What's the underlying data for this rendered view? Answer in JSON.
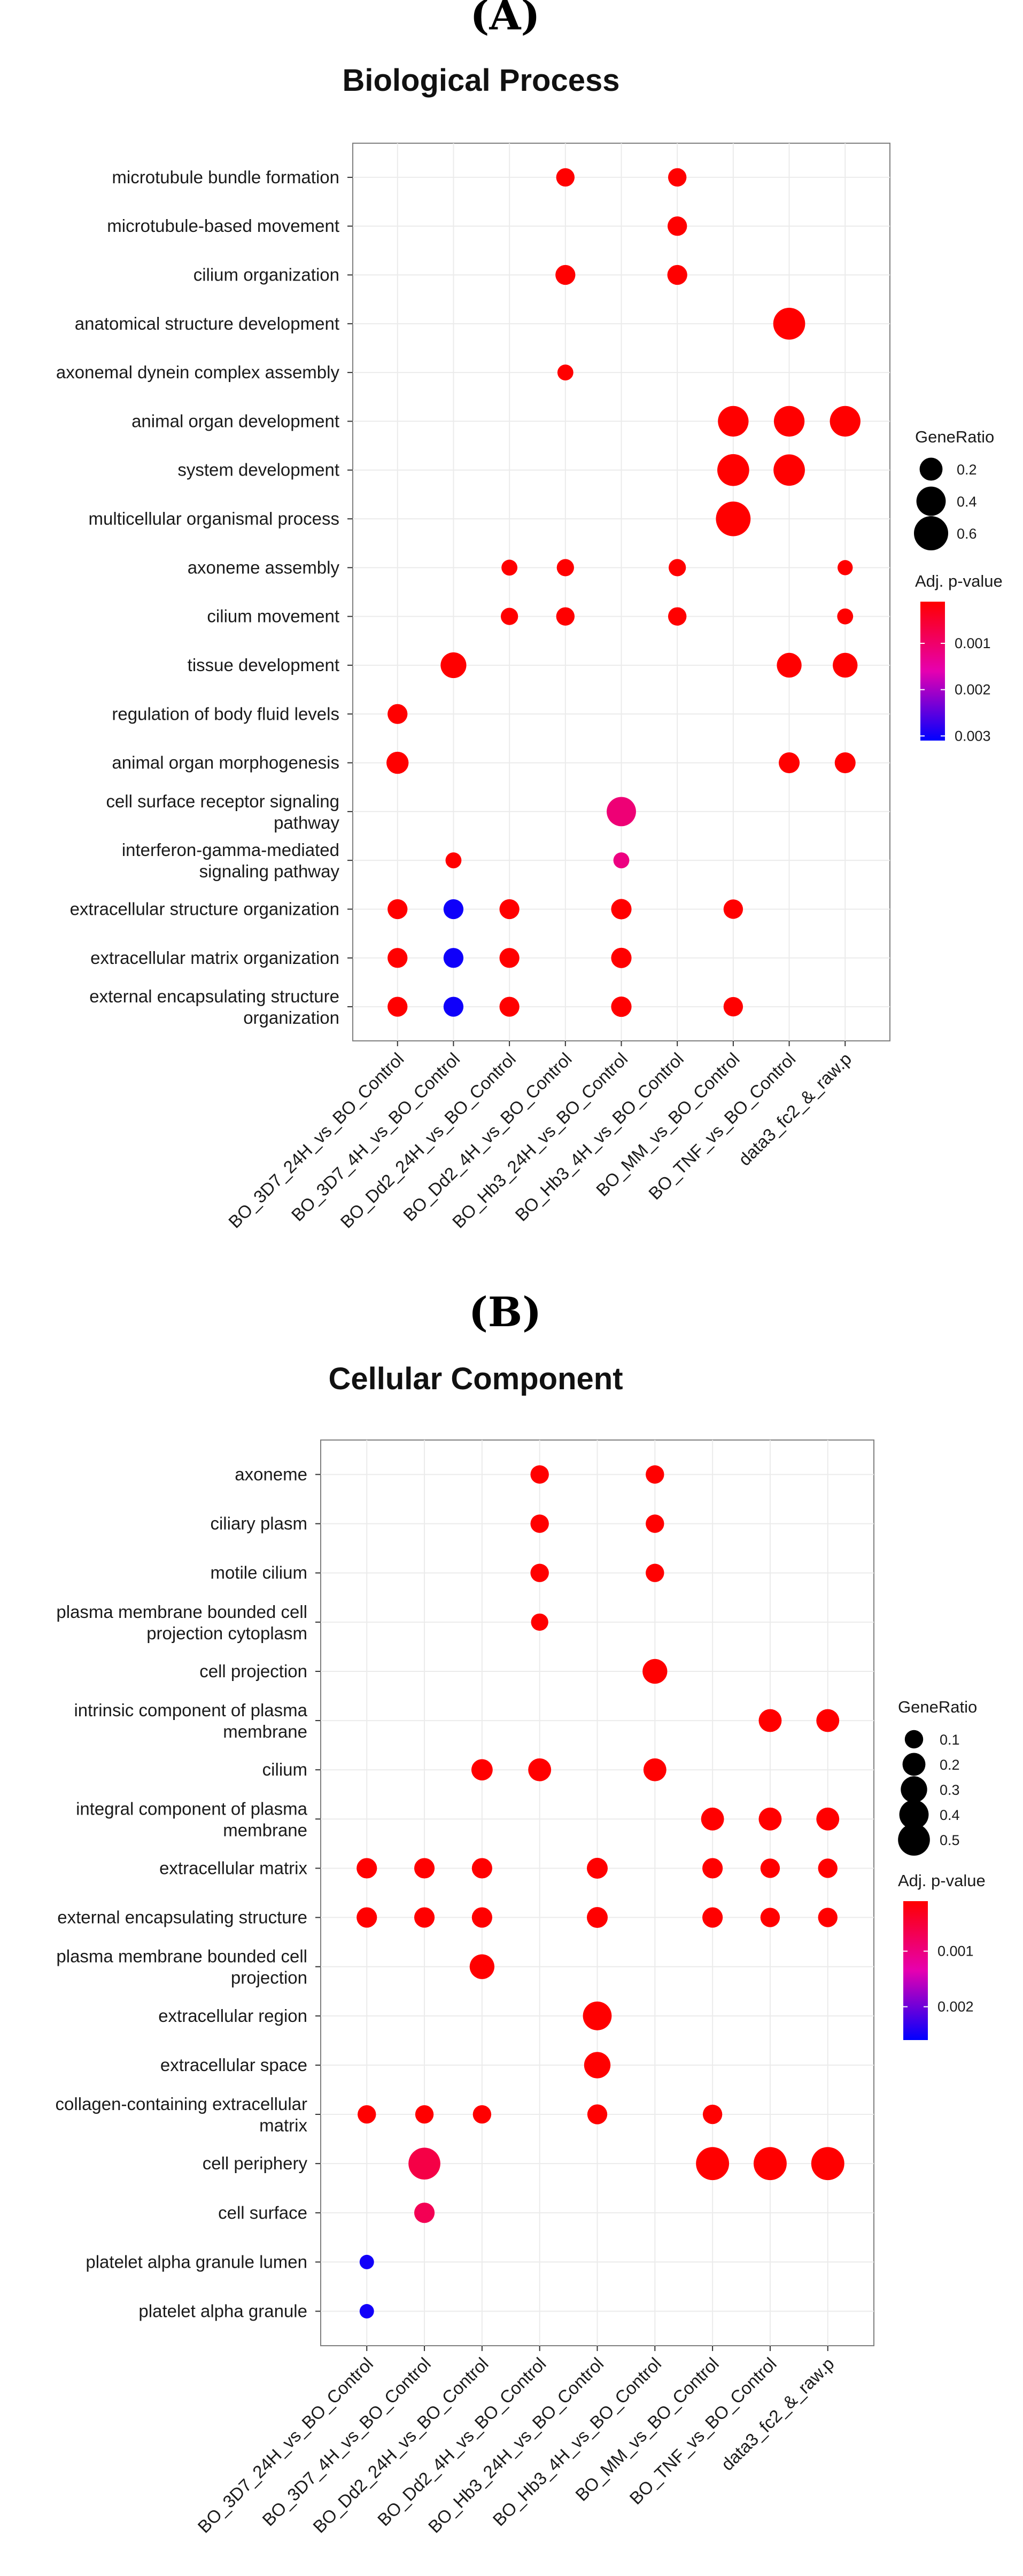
{
  "chart_data": [
    {
      "type": "scatter",
      "panel_label": "(A)",
      "title": "Biological Process",
      "xlabel": "",
      "ylabel": "",
      "grid": true,
      "legend_position": "right",
      "x_categories": [
        "BO_3D7_24H_vs_BO_Control",
        "BO_3D7_4H_vs_BO_Control",
        "BO_Dd2_24H_vs_BO_Control",
        "BO_Dd2_4H_vs_BO_Control",
        "BO_Hb3_24H_vs_BO_Control",
        "BO_Hb3_4H_vs_BO_Control",
        "BO_MM_vs_BO_Control",
        "BO_TNF_vs_BO_Control",
        "data3_fc2_&_raw.p"
      ],
      "y_categories": [
        "microtubule bundle formation",
        "microtubule-based movement",
        "cilium organization",
        "anatomical structure development",
        "axonemal dynein complex assembly",
        "animal organ development",
        "system development",
        "multicellular organismal process",
        "axoneme assembly",
        "cilium movement",
        "tissue development",
        "regulation of body fluid levels",
        "animal organ morphogenesis",
        "cell surface receptor signaling\npathway",
        "interferon-gamma-mediated\nsignaling pathway",
        "extracellular structure organization",
        "extracellular matrix organization",
        "external encapsulating structure\norganization"
      ],
      "points": [
        {
          "x": 3,
          "y": 0,
          "size": 0.1,
          "padj": 0.0001
        },
        {
          "x": 5,
          "y": 0,
          "size": 0.1,
          "padj": 0.0001
        },
        {
          "x": 5,
          "y": 1,
          "size": 0.12,
          "padj": 0.0001
        },
        {
          "x": 3,
          "y": 2,
          "size": 0.13,
          "padj": 0.0001
        },
        {
          "x": 5,
          "y": 2,
          "size": 0.13,
          "padj": 0.0001
        },
        {
          "x": 7,
          "y": 3,
          "size": 0.5,
          "padj": 0.0001
        },
        {
          "x": 3,
          "y": 4,
          "size": 0.06,
          "padj": 0.0001
        },
        {
          "x": 6,
          "y": 5,
          "size": 0.45,
          "padj": 0.0001
        },
        {
          "x": 7,
          "y": 5,
          "size": 0.45,
          "padj": 0.0001
        },
        {
          "x": 8,
          "y": 5,
          "size": 0.45,
          "padj": 0.0001
        },
        {
          "x": 6,
          "y": 6,
          "size": 0.5,
          "padj": 0.0001
        },
        {
          "x": 7,
          "y": 6,
          "size": 0.48,
          "padj": 0.0001
        },
        {
          "x": 6,
          "y": 7,
          "size": 0.62,
          "padj": 0.0001
        },
        {
          "x": 2,
          "y": 8,
          "size": 0.06,
          "padj": 0.0001
        },
        {
          "x": 3,
          "y": 8,
          "size": 0.08,
          "padj": 0.0001
        },
        {
          "x": 5,
          "y": 8,
          "size": 0.08,
          "padj": 0.0001
        },
        {
          "x": 8,
          "y": 8,
          "size": 0.05,
          "padj": 0.0001
        },
        {
          "x": 2,
          "y": 9,
          "size": 0.08,
          "padj": 0.0001
        },
        {
          "x": 3,
          "y": 9,
          "size": 0.1,
          "padj": 0.0001
        },
        {
          "x": 5,
          "y": 9,
          "size": 0.1,
          "padj": 0.0001
        },
        {
          "x": 8,
          "y": 9,
          "size": 0.06,
          "padj": 0.0001
        },
        {
          "x": 1,
          "y": 10,
          "size": 0.28,
          "padj": 0.0001
        },
        {
          "x": 7,
          "y": 10,
          "size": 0.25,
          "padj": 0.0001
        },
        {
          "x": 8,
          "y": 10,
          "size": 0.25,
          "padj": 0.0001
        },
        {
          "x": 0,
          "y": 11,
          "size": 0.13,
          "padj": 0.0001
        },
        {
          "x": 0,
          "y": 12,
          "size": 0.18,
          "padj": 0.0001
        },
        {
          "x": 7,
          "y": 12,
          "size": 0.15,
          "padj": 0.0001
        },
        {
          "x": 8,
          "y": 12,
          "size": 0.15,
          "padj": 0.0001
        },
        {
          "x": 4,
          "y": 13,
          "size": 0.4,
          "padj": 0.0011
        },
        {
          "x": 1,
          "y": 14,
          "size": 0.06,
          "padj": 0.0001
        },
        {
          "x": 4,
          "y": 14,
          "size": 0.06,
          "padj": 0.0012
        },
        {
          "x": 0,
          "y": 15,
          "size": 0.13,
          "padj": 0.0001
        },
        {
          "x": 1,
          "y": 15,
          "size": 0.13,
          "padj": 0.003
        },
        {
          "x": 2,
          "y": 15,
          "size": 0.13,
          "padj": 0.0001
        },
        {
          "x": 4,
          "y": 15,
          "size": 0.14,
          "padj": 0.0001
        },
        {
          "x": 6,
          "y": 15,
          "size": 0.12,
          "padj": 0.0001
        },
        {
          "x": 0,
          "y": 16,
          "size": 0.13,
          "padj": 0.0001
        },
        {
          "x": 1,
          "y": 16,
          "size": 0.13,
          "padj": 0.003
        },
        {
          "x": 2,
          "y": 16,
          "size": 0.13,
          "padj": 0.0001
        },
        {
          "x": 4,
          "y": 16,
          "size": 0.14,
          "padj": 0.0001
        },
        {
          "x": 0,
          "y": 17,
          "size": 0.13,
          "padj": 0.0001
        },
        {
          "x": 1,
          "y": 17,
          "size": 0.13,
          "padj": 0.003
        },
        {
          "x": 2,
          "y": 17,
          "size": 0.13,
          "padj": 0.0001
        },
        {
          "x": 4,
          "y": 17,
          "size": 0.14,
          "padj": 0.0001
        },
        {
          "x": 6,
          "y": 17,
          "size": 0.12,
          "padj": 0.0001
        }
      ],
      "legend_size": {
        "title": "GeneRatio",
        "values": [
          0.2,
          0.4,
          0.6
        ],
        "labels": [
          "0.2",
          "0.4",
          "0.6"
        ]
      },
      "legend_color": {
        "title": "Adj. p-value",
        "ticks": [
          0.001,
          0.002,
          0.003
        ],
        "labels": [
          "0.001",
          "0.002",
          "0.003"
        ],
        "low": 0.0001,
        "high": 0.0031,
        "low_color": "#ff0000",
        "high_color": "#0000ff"
      }
    },
    {
      "type": "scatter",
      "panel_label": "(B)",
      "title": "Cellular Component",
      "xlabel": "",
      "ylabel": "",
      "grid": true,
      "legend_position": "right",
      "x_categories": [
        "BO_3D7_24H_vs_BO_Control",
        "BO_3D7_4H_vs_BO_Control",
        "BO_Dd2_24H_vs_BO_Control",
        "BO_Dd2_4H_vs_BO_Control",
        "BO_Hb3_24H_vs_BO_Control",
        "BO_Hb3_4H_vs_BO_Control",
        "BO_MM_vs_BO_Control",
        "BO_TNF_vs_BO_Control",
        "data3_fc2_&_raw.p"
      ],
      "y_categories": [
        "axoneme",
        "ciliary plasm",
        "motile cilium",
        "plasma membrane bounded cell\nprojection cytoplasm",
        "cell projection",
        "intrinsic component of plasma\nmembrane",
        "cilium",
        "integral component of plasma\nmembrane",
        "extracellular matrix",
        "external encapsulating structure",
        "plasma membrane bounded cell\nprojection",
        "extracellular region",
        "extracellular space",
        "collagen-containing extracellular\nmatrix",
        "cell periphery",
        "cell surface",
        "platelet alpha granule lumen",
        "platelet alpha granule"
      ],
      "points": [
        {
          "x": 3,
          "y": 0,
          "size": 0.1,
          "padj": 0.0001
        },
        {
          "x": 5,
          "y": 0,
          "size": 0.1,
          "padj": 0.0001
        },
        {
          "x": 3,
          "y": 1,
          "size": 0.1,
          "padj": 0.0001
        },
        {
          "x": 5,
          "y": 1,
          "size": 0.1,
          "padj": 0.0001
        },
        {
          "x": 3,
          "y": 2,
          "size": 0.1,
          "padj": 0.0001
        },
        {
          "x": 5,
          "y": 2,
          "size": 0.1,
          "padj": 0.0001
        },
        {
          "x": 3,
          "y": 3,
          "size": 0.08,
          "padj": 0.0001
        },
        {
          "x": 5,
          "y": 4,
          "size": 0.25,
          "padj": 0.0001
        },
        {
          "x": 7,
          "y": 5,
          "size": 0.2,
          "padj": 0.0001
        },
        {
          "x": 8,
          "y": 5,
          "size": 0.2,
          "padj": 0.0001
        },
        {
          "x": 2,
          "y": 6,
          "size": 0.16,
          "padj": 0.0001
        },
        {
          "x": 3,
          "y": 6,
          "size": 0.2,
          "padj": 0.0001
        },
        {
          "x": 5,
          "y": 6,
          "size": 0.2,
          "padj": 0.0001
        },
        {
          "x": 6,
          "y": 7,
          "size": 0.2,
          "padj": 0.0001
        },
        {
          "x": 7,
          "y": 7,
          "size": 0.2,
          "padj": 0.0001
        },
        {
          "x": 8,
          "y": 7,
          "size": 0.2,
          "padj": 0.0001
        },
        {
          "x": 0,
          "y": 8,
          "size": 0.14,
          "padj": 0.0001
        },
        {
          "x": 1,
          "y": 8,
          "size": 0.14,
          "padj": 0.0001
        },
        {
          "x": 2,
          "y": 8,
          "size": 0.14,
          "padj": 0.0001
        },
        {
          "x": 4,
          "y": 8,
          "size": 0.15,
          "padj": 0.0001
        },
        {
          "x": 6,
          "y": 8,
          "size": 0.14,
          "padj": 0.0001
        },
        {
          "x": 7,
          "y": 8,
          "size": 0.12,
          "padj": 0.0001
        },
        {
          "x": 8,
          "y": 8,
          "size": 0.12,
          "padj": 0.0001
        },
        {
          "x": 0,
          "y": 9,
          "size": 0.14,
          "padj": 0.0001
        },
        {
          "x": 1,
          "y": 9,
          "size": 0.14,
          "padj": 0.0001
        },
        {
          "x": 2,
          "y": 9,
          "size": 0.14,
          "padj": 0.0001
        },
        {
          "x": 4,
          "y": 9,
          "size": 0.15,
          "padj": 0.0001
        },
        {
          "x": 6,
          "y": 9,
          "size": 0.14,
          "padj": 0.0001
        },
        {
          "x": 7,
          "y": 9,
          "size": 0.12,
          "padj": 0.0001
        },
        {
          "x": 8,
          "y": 9,
          "size": 0.12,
          "padj": 0.0001
        },
        {
          "x": 2,
          "y": 10,
          "size": 0.25,
          "padj": 0.0001
        },
        {
          "x": 4,
          "y": 11,
          "size": 0.38,
          "padj": 0.0001
        },
        {
          "x": 4,
          "y": 12,
          "size": 0.3,
          "padj": 0.0001
        },
        {
          "x": 0,
          "y": 13,
          "size": 0.1,
          "padj": 0.0001
        },
        {
          "x": 1,
          "y": 13,
          "size": 0.1,
          "padj": 0.0001
        },
        {
          "x": 2,
          "y": 13,
          "size": 0.1,
          "padj": 0.0001
        },
        {
          "x": 4,
          "y": 13,
          "size": 0.13,
          "padj": 0.0001
        },
        {
          "x": 6,
          "y": 13,
          "size": 0.12,
          "padj": 0.0001
        },
        {
          "x": 1,
          "y": 14,
          "size": 0.5,
          "padj": 0.0006
        },
        {
          "x": 6,
          "y": 14,
          "size": 0.55,
          "padj": 0.0001
        },
        {
          "x": 7,
          "y": 14,
          "size": 0.55,
          "padj": 0.0001
        },
        {
          "x": 8,
          "y": 14,
          "size": 0.55,
          "padj": 0.0001
        },
        {
          "x": 1,
          "y": 15,
          "size": 0.14,
          "padj": 0.0007
        },
        {
          "x": 0,
          "y": 16,
          "size": 0.04,
          "padj": 0.0025
        },
        {
          "x": 0,
          "y": 17,
          "size": 0.04,
          "padj": 0.0025
        }
      ],
      "legend_size": {
        "title": "GeneRatio",
        "values": [
          0.1,
          0.2,
          0.3,
          0.4,
          0.5
        ],
        "labels": [
          "0.1",
          "0.2",
          "0.3",
          "0.4",
          "0.5"
        ]
      },
      "legend_color": {
        "title": "Adj. p-value",
        "ticks": [
          0.001,
          0.002
        ],
        "labels": [
          "0.001",
          "0.002"
        ],
        "low": 0.0001,
        "high": 0.0026,
        "low_color": "#ff0000",
        "high_color": "#0000ff"
      }
    }
  ]
}
